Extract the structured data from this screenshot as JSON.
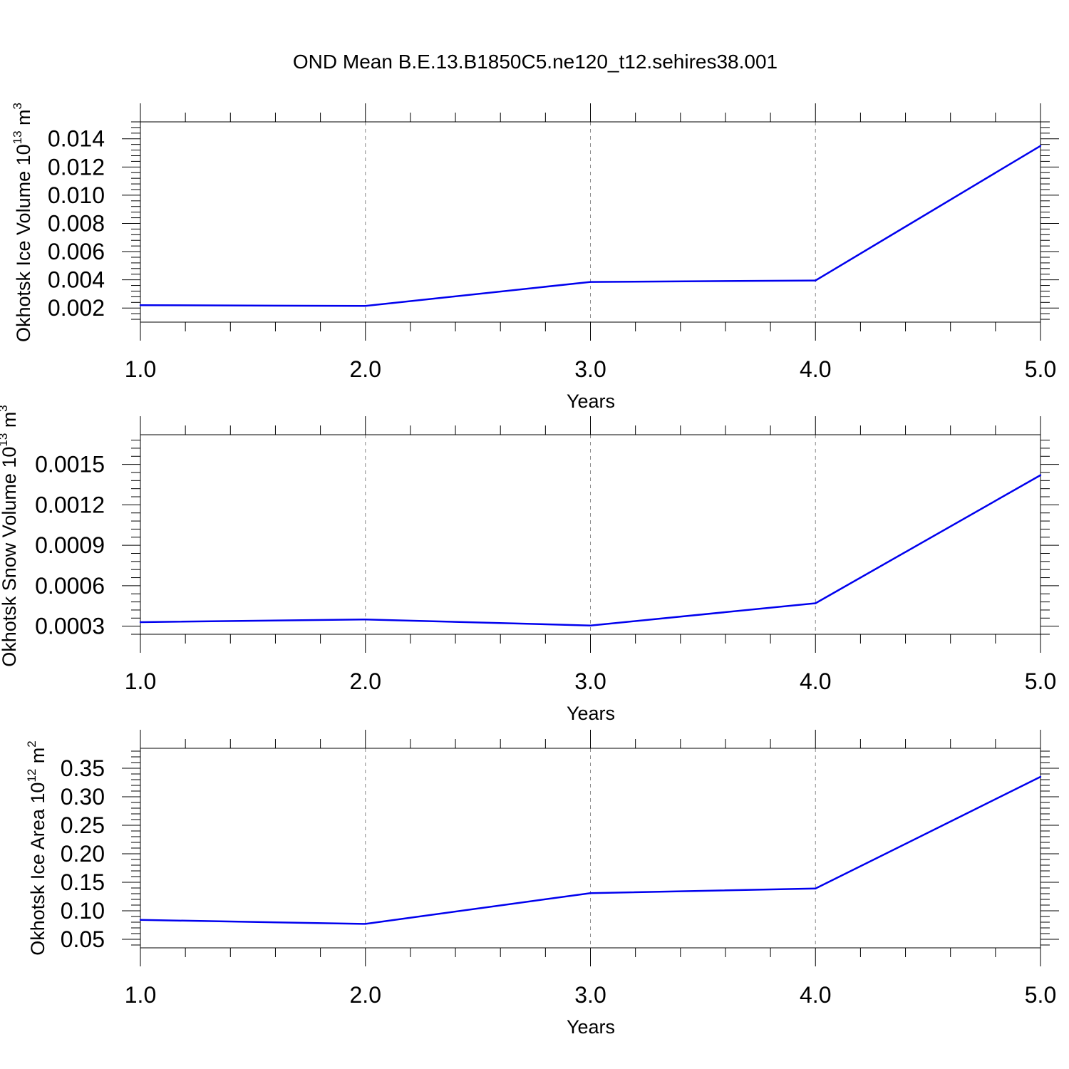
{
  "title": "OND Mean B.E.13.B1850C5.ne120_t12.sehires38.001",
  "series_color": "#0000ee",
  "chart_data": [
    {
      "type": "line",
      "x": [
        1.0,
        2.0,
        3.0,
        4.0,
        5.0
      ],
      "values": [
        0.0022,
        0.00215,
        0.00385,
        0.00395,
        0.0135
      ],
      "xlabel": "Years",
      "ylabel": {
        "text": "Okhotsk Ice Volume 10",
        "sup": "13",
        "unit": " m",
        "unit_sup": "3"
      },
      "xlim": [
        1.0,
        5.0
      ],
      "ylim": [
        0.001,
        0.0152
      ],
      "xticks": [
        "1.0",
        "2.0",
        "3.0",
        "4.0",
        "5.0"
      ],
      "yticks": [
        {
          "value": 0.002,
          "label": "0.002"
        },
        {
          "value": 0.004,
          "label": "0.004"
        },
        {
          "value": 0.006,
          "label": "0.006"
        },
        {
          "value": 0.008,
          "label": "0.008"
        },
        {
          "value": 0.01,
          "label": "0.010"
        },
        {
          "value": 0.012,
          "label": "0.012"
        },
        {
          "value": 0.014,
          "label": "0.014"
        }
      ],
      "grid": "x-dashed"
    },
    {
      "type": "line",
      "x": [
        1.0,
        2.0,
        3.0,
        4.0,
        5.0
      ],
      "values": [
        0.00033,
        0.00035,
        0.000305,
        0.00047,
        0.00142
      ],
      "xlabel": "Years",
      "ylabel": {
        "text": "Okhotsk Snow Volume 10",
        "sup": "13",
        "unit": " m",
        "unit_sup": "3"
      },
      "xlim": [
        1.0,
        5.0
      ],
      "ylim": [
        0.00024,
        0.00172
      ],
      "xticks": [
        "1.0",
        "2.0",
        "3.0",
        "4.0",
        "5.0"
      ],
      "yticks": [
        {
          "value": 0.0003,
          "label": "0.0003"
        },
        {
          "value": 0.0006,
          "label": "0.0006"
        },
        {
          "value": 0.0009,
          "label": "0.0009"
        },
        {
          "value": 0.0012,
          "label": "0.0012"
        },
        {
          "value": 0.0015,
          "label": "0.0015"
        }
      ],
      "grid": "x-dashed"
    },
    {
      "type": "line",
      "x": [
        1.0,
        2.0,
        3.0,
        4.0,
        5.0
      ],
      "values": [
        0.084,
        0.077,
        0.131,
        0.139,
        0.335
      ],
      "xlabel": "Years",
      "ylabel": {
        "text": "Okhotsk Ice Area 10",
        "sup": "12",
        "unit": " m",
        "unit_sup": "2"
      },
      "xlim": [
        1.0,
        5.0
      ],
      "ylim": [
        0.035,
        0.385
      ],
      "xticks": [
        "1.0",
        "2.0",
        "3.0",
        "4.0",
        "5.0"
      ],
      "yticks": [
        {
          "value": 0.05,
          "label": "0.05"
        },
        {
          "value": 0.1,
          "label": "0.10"
        },
        {
          "value": 0.15,
          "label": "0.15"
        },
        {
          "value": 0.2,
          "label": "0.20"
        },
        {
          "value": 0.25,
          "label": "0.25"
        },
        {
          "value": 0.3,
          "label": "0.30"
        },
        {
          "value": 0.35,
          "label": "0.35"
        }
      ],
      "grid": "x-dashed"
    }
  ]
}
